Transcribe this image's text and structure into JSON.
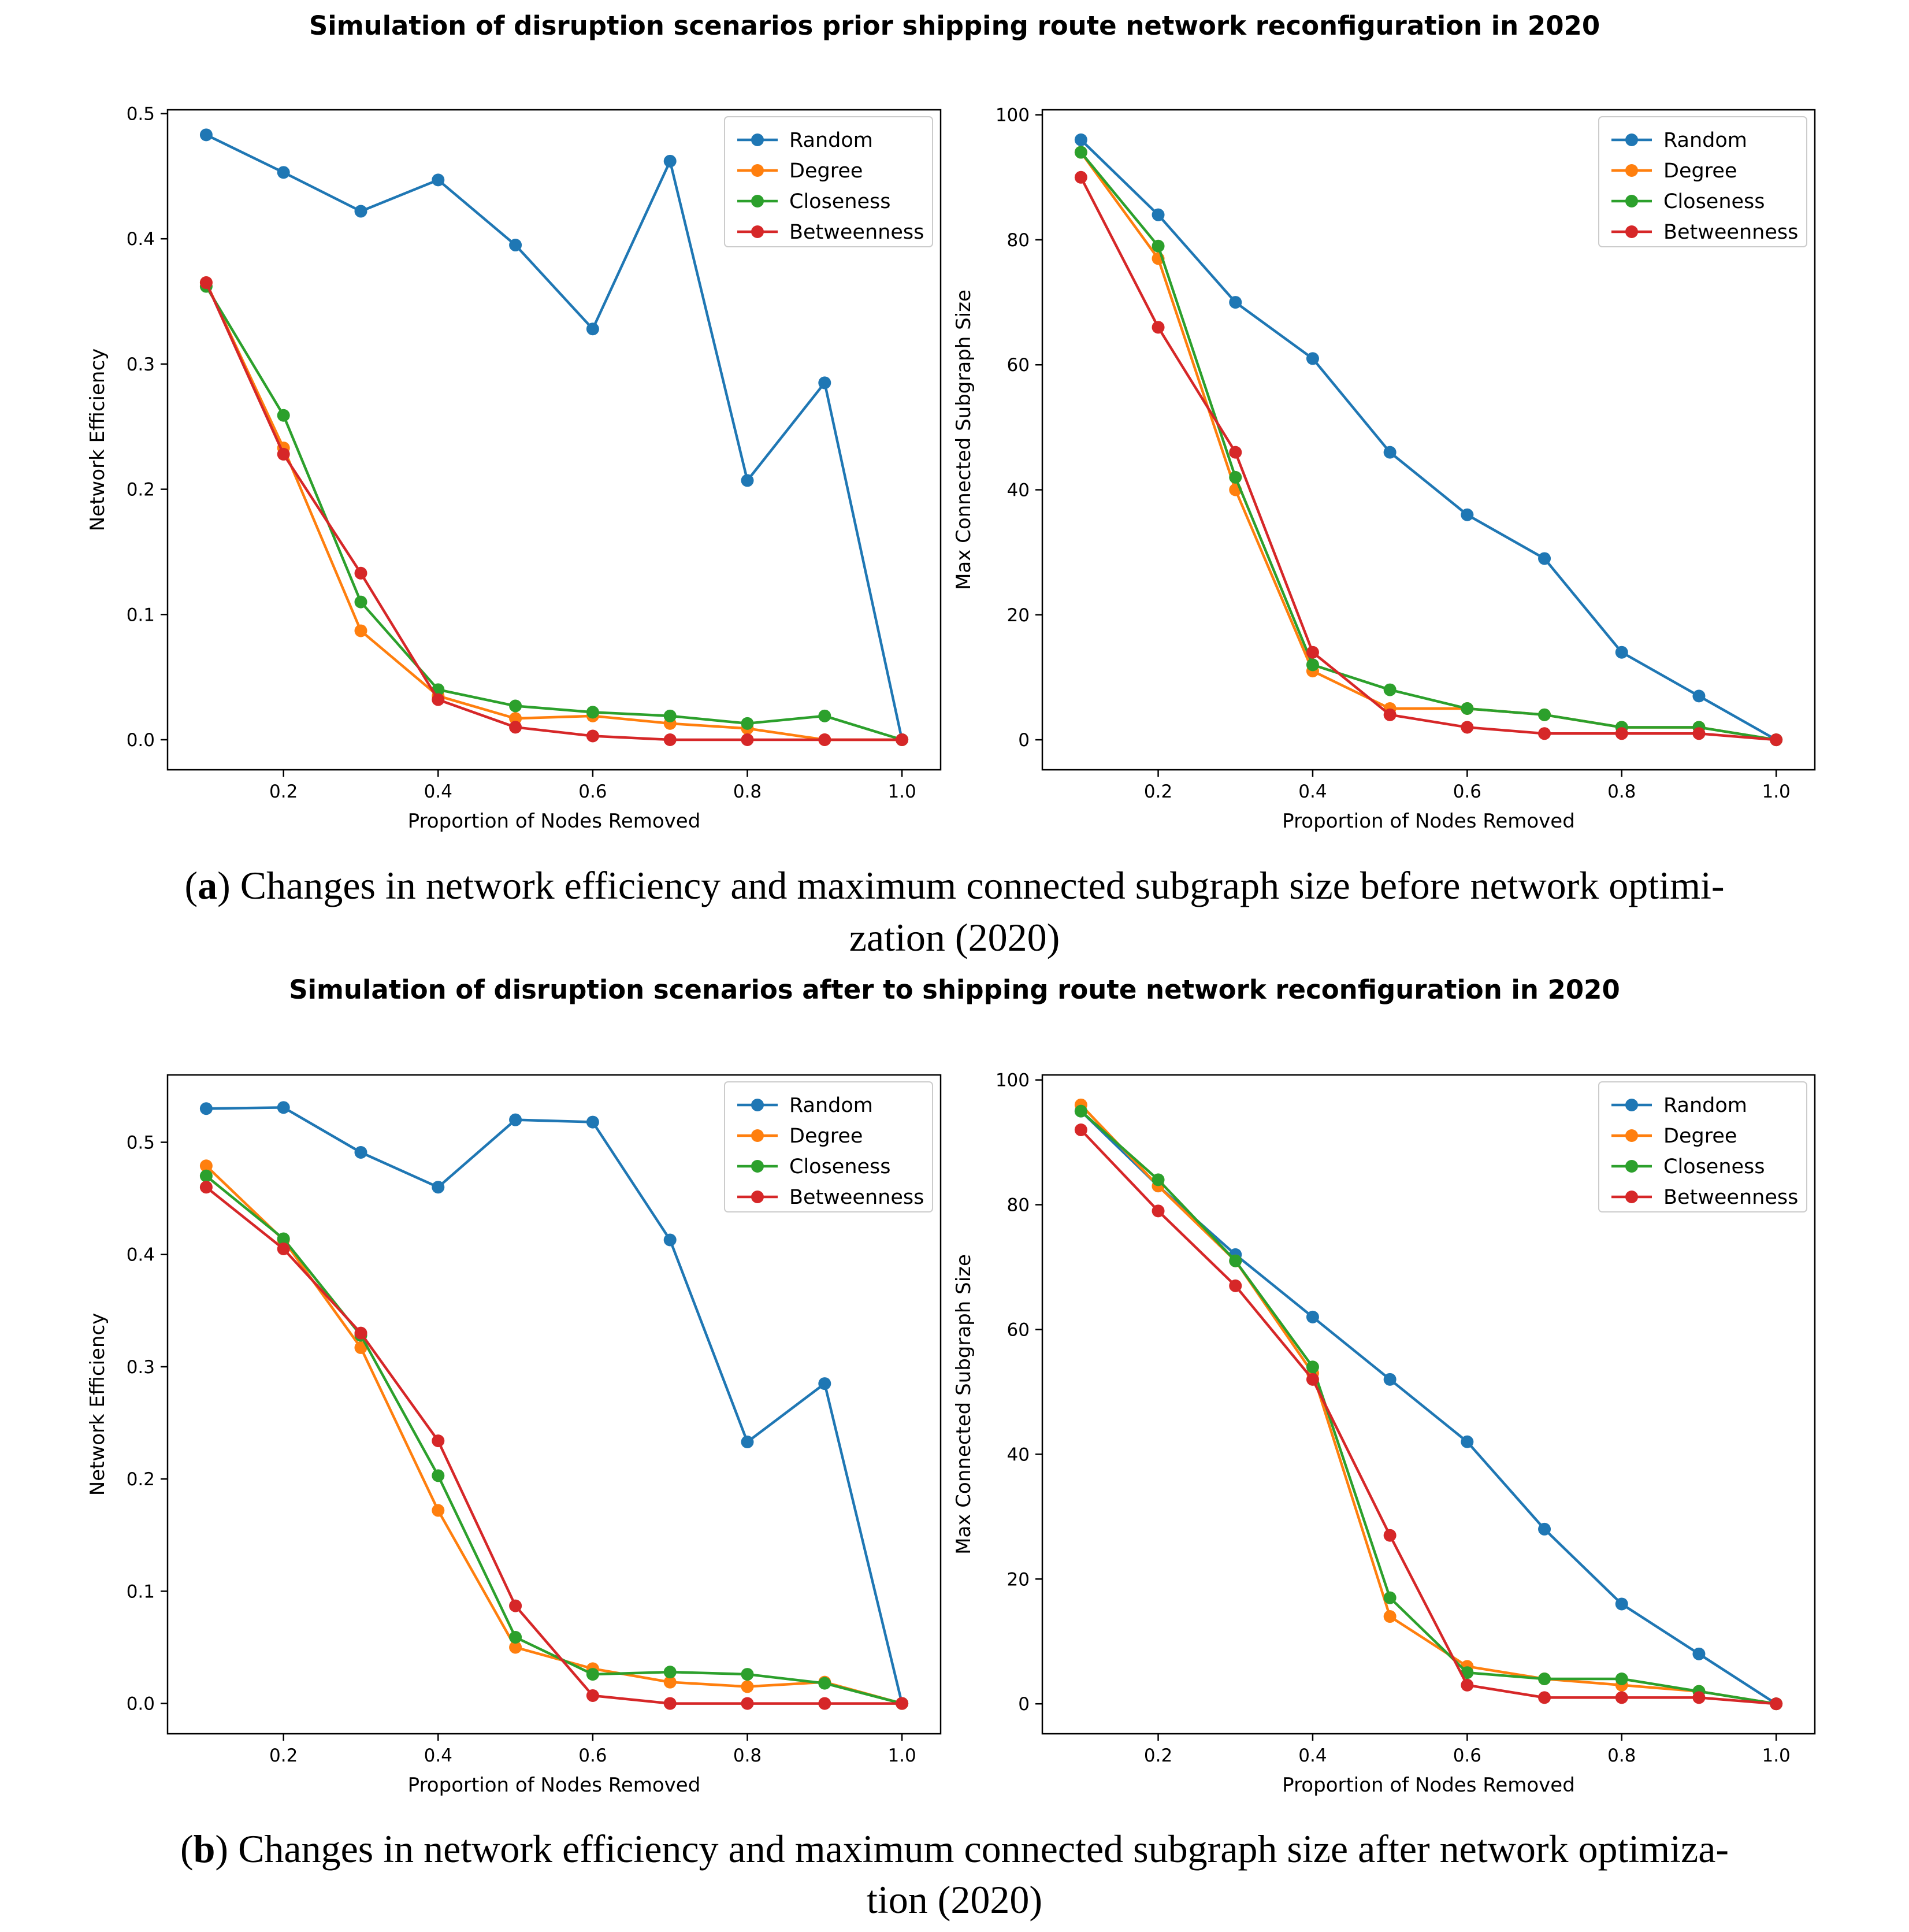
{
  "panels": [
    {
      "suptitle": "Simulation of disruption scenarios prior shipping route network reconfiguration in 2020",
      "caption_letter": "a",
      "caption_line1": "Changes in network efficiency and maximum connected subgraph size before network optimi-",
      "caption_line2": "zation (2020)"
    },
    {
      "suptitle": "Simulation of disruption scenarios after to shipping route network reconfiguration in 2020",
      "caption_letter": "b",
      "caption_line1": "Changes in network efficiency and maximum connected subgraph size after network optimiza-",
      "caption_line2": "tion (2020)"
    }
  ],
  "colors": {
    "Random": "#1f77b4",
    "Degree": "#ff7f0e",
    "Closeness": "#2ca02c",
    "Betweenness": "#d62728"
  },
  "chart_data": [
    {
      "type": "line",
      "panel": "a",
      "title": "",
      "xlabel": "Proportion of Nodes Removed",
      "ylabel": "Network Efficiency",
      "xlim": [
        0.05,
        1.05
      ],
      "ylim": [
        -0.024,
        0.503
      ],
      "xticks": [
        "0.2",
        "0.4",
        "0.6",
        "0.8",
        "1.0"
      ],
      "yticks": [
        "0.0",
        "0.1",
        "0.2",
        "0.3",
        "0.4",
        "0.5"
      ],
      "legend": "top-right",
      "x": [
        0.1,
        0.2,
        0.3,
        0.4,
        0.5,
        0.6,
        0.7,
        0.8,
        0.9,
        1.0
      ],
      "series": [
        {
          "name": "Random",
          "values": [
            0.483,
            0.453,
            0.422,
            0.447,
            0.395,
            0.328,
            0.462,
            0.207,
            0.285,
            0.0
          ]
        },
        {
          "name": "Degree",
          "values": [
            0.365,
            0.233,
            0.087,
            0.035,
            0.017,
            0.019,
            0.013,
            0.009,
            0.0,
            0.0
          ]
        },
        {
          "name": "Closeness",
          "values": [
            0.362,
            0.259,
            0.11,
            0.04,
            0.027,
            0.022,
            0.019,
            0.013,
            0.019,
            0.0
          ]
        },
        {
          "name": "Betweenness",
          "values": [
            0.365,
            0.228,
            0.133,
            0.032,
            0.01,
            0.003,
            0.0,
            0.0,
            0.0,
            0.0
          ]
        }
      ]
    },
    {
      "type": "line",
      "panel": "a",
      "title": "",
      "xlabel": "Proportion of Nodes Removed",
      "ylabel": "Max Connected Subgraph Size",
      "xlim": [
        0.05,
        1.05
      ],
      "ylim": [
        -4.8,
        100.8
      ],
      "xticks": [
        "0.2",
        "0.4",
        "0.6",
        "0.8",
        "1.0"
      ],
      "yticks": [
        "0",
        "20",
        "40",
        "60",
        "80",
        "100"
      ],
      "legend": "top-right",
      "x": [
        0.1,
        0.2,
        0.3,
        0.4,
        0.5,
        0.6,
        0.7,
        0.8,
        0.9,
        1.0
      ],
      "series": [
        {
          "name": "Random",
          "values": [
            96,
            84,
            70,
            61,
            46,
            36,
            29,
            14,
            7,
            0
          ]
        },
        {
          "name": "Degree",
          "values": [
            94,
            77,
            40,
            11,
            5,
            5,
            4,
            2,
            2,
            0
          ]
        },
        {
          "name": "Closeness",
          "values": [
            94,
            79,
            42,
            12,
            8,
            5,
            4,
            2,
            2,
            0
          ]
        },
        {
          "name": "Betweenness",
          "values": [
            90,
            66,
            46,
            14,
            4,
            2,
            1,
            1,
            1,
            0
          ]
        }
      ]
    },
    {
      "type": "line",
      "panel": "b",
      "title": "",
      "xlabel": "Proportion of Nodes Removed",
      "ylabel": "Network Efficiency",
      "xlim": [
        0.05,
        1.05
      ],
      "ylim": [
        -0.027,
        0.56
      ],
      "xticks": [
        "0.2",
        "0.4",
        "0.6",
        "0.8",
        "1.0"
      ],
      "yticks": [
        "0.0",
        "0.1",
        "0.2",
        "0.3",
        "0.4",
        "0.5"
      ],
      "legend": "top-right",
      "x": [
        0.1,
        0.2,
        0.3,
        0.4,
        0.5,
        0.6,
        0.7,
        0.8,
        0.9,
        1.0
      ],
      "series": [
        {
          "name": "Random",
          "values": [
            0.53,
            0.531,
            0.491,
            0.46,
            0.52,
            0.518,
            0.413,
            0.233,
            0.285,
            0.0
          ]
        },
        {
          "name": "Degree",
          "values": [
            0.479,
            0.413,
            0.317,
            0.172,
            0.05,
            0.031,
            0.019,
            0.015,
            0.019,
            0.0
          ]
        },
        {
          "name": "Closeness",
          "values": [
            0.47,
            0.414,
            0.328,
            0.203,
            0.059,
            0.026,
            0.028,
            0.026,
            0.018,
            0.0
          ]
        },
        {
          "name": "Betweenness",
          "values": [
            0.46,
            0.405,
            0.33,
            0.234,
            0.087,
            0.007,
            0.0,
            0.0,
            0.0,
            0.0
          ]
        }
      ]
    },
    {
      "type": "line",
      "panel": "b",
      "title": "",
      "xlabel": "Proportion of Nodes Removed",
      "ylabel": "Max Connected Subgraph Size",
      "xlim": [
        0.05,
        1.05
      ],
      "ylim": [
        -4.8,
        100.8
      ],
      "xticks": [
        "0.2",
        "0.4",
        "0.6",
        "0.8",
        "1.0"
      ],
      "yticks": [
        "0",
        "20",
        "40",
        "60",
        "80",
        "100"
      ],
      "legend": "top-right",
      "x": [
        0.1,
        0.2,
        0.3,
        0.4,
        0.5,
        0.6,
        0.7,
        0.8,
        0.9,
        1.0
      ],
      "series": [
        {
          "name": "Random",
          "values": [
            95,
            83,
            72,
            62,
            52,
            42,
            28,
            16,
            8,
            0
          ]
        },
        {
          "name": "Degree",
          "values": [
            96,
            83,
            71,
            53,
            14,
            6,
            4,
            3,
            2,
            0
          ]
        },
        {
          "name": "Closeness",
          "values": [
            95,
            84,
            71,
            54,
            17,
            5,
            4,
            4,
            2,
            0
          ]
        },
        {
          "name": "Betweenness",
          "values": [
            92,
            79,
            67,
            52,
            27,
            3,
            1,
            1,
            1,
            0
          ]
        }
      ]
    }
  ]
}
